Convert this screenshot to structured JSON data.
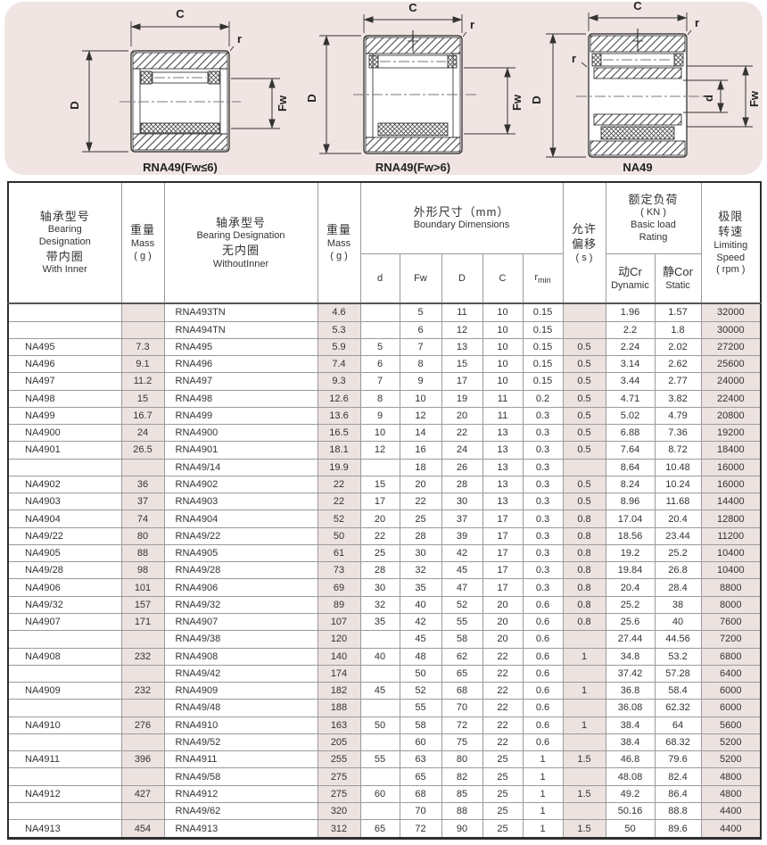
{
  "colors": {
    "panel_bg": "#f0e5e2",
    "shaded_column": "#ece2e0",
    "table_border": "#2e2e2e",
    "grid_line": "#9b9b9b",
    "text": "#333333"
  },
  "diagrams": [
    {
      "caption": "RNA49(Fw≤6)",
      "labels": {
        "C": "C",
        "D": "D",
        "Fw": "Fw",
        "r": "r"
      }
    },
    {
      "caption": "RNA49(Fw>6)",
      "labels": {
        "C": "C",
        "D": "D",
        "Fw": "Fw",
        "r": "r"
      }
    },
    {
      "caption": "NA49",
      "labels": {
        "C": "C",
        "D": "D",
        "d": "d",
        "Fw": "Fw",
        "r": "r",
        "r2": "r"
      }
    }
  ],
  "table": {
    "header": {
      "with_inner": [
        "轴承型号",
        "Bearing",
        "Designation",
        "带内圈",
        "With Inner"
      ],
      "mass1": [
        "重量",
        "Mass",
        "( g )"
      ],
      "without_inner": [
        "轴承型号",
        "Bearing Designation",
        "无内圈",
        "WithoutInner"
      ],
      "mass2": [
        "重量",
        "Mass",
        "( g )"
      ],
      "boundary": [
        "外形尺寸（mm）",
        "Boundary Dimensions"
      ],
      "offset": [
        "允许",
        "偏移",
        "( s )"
      ],
      "load": [
        "额定负荷",
        "( KN )",
        "Basic load",
        "Rating"
      ],
      "speed": [
        "极限",
        "转速",
        "Limiting",
        "Speed",
        "( rpm )"
      ],
      "dim_d": "d",
      "dim_fw": "Fw",
      "dim_D": "D",
      "dim_C": "C",
      "rmin_base": "r",
      "rmin_sub": "min",
      "cr": [
        "动Cr",
        "Dynamic"
      ],
      "cor": [
        "静Cor",
        "Static"
      ]
    },
    "rows": [
      [
        "",
        "",
        "RNA493TN",
        "4.6",
        "",
        "5",
        "11",
        "10",
        "0.15",
        "",
        "1.96",
        "1.57",
        "32000"
      ],
      [
        "",
        "",
        "RNA494TN",
        "5.3",
        "",
        "6",
        "12",
        "10",
        "0.15",
        "",
        "2.2",
        "1.8",
        "30000"
      ],
      [
        "NA495",
        "7.3",
        "RNA495",
        "5.9",
        "5",
        "7",
        "13",
        "10",
        "0.15",
        "0.5",
        "2.24",
        "2.02",
        "27200"
      ],
      [
        "NA496",
        "9.1",
        "RNA496",
        "7.4",
        "6",
        "8",
        "15",
        "10",
        "0.15",
        "0.5",
        "3.14",
        "2.62",
        "25600"
      ],
      [
        "NA497",
        "11.2",
        "RNA497",
        "9.3",
        "7",
        "9",
        "17",
        "10",
        "0.15",
        "0.5",
        "3.44",
        "2.77",
        "24000"
      ],
      [
        "NA498",
        "15",
        "RNA498",
        "12.6",
        "8",
        "10",
        "19",
        "11",
        "0.2",
        "0.5",
        "4.71",
        "3.82",
        "22400"
      ],
      [
        "NA499",
        "16.7",
        "RNA499",
        "13.6",
        "9",
        "12",
        "20",
        "11",
        "0.3",
        "0.5",
        "5.02",
        "4.79",
        "20800"
      ],
      [
        "NA4900",
        "24",
        "RNA4900",
        "16.5",
        "10",
        "14",
        "22",
        "13",
        "0.3",
        "0.5",
        "6.88",
        "7.36",
        "19200"
      ],
      [
        "NA4901",
        "26.5",
        "RNA4901",
        "18.1",
        "12",
        "16",
        "24",
        "13",
        "0.3",
        "0.5",
        "7.64",
        "8.72",
        "18400"
      ],
      [
        "",
        "",
        "RNA49/14",
        "19.9",
        "",
        "18",
        "26",
        "13",
        "0.3",
        "",
        "8.64",
        "10.48",
        "16000"
      ],
      [
        "NA4902",
        "36",
        "RNA4902",
        "22",
        "15",
        "20",
        "28",
        "13",
        "0.3",
        "0.5",
        "8.24",
        "10.24",
        "16000"
      ],
      [
        "NA4903",
        "37",
        "RNA4903",
        "22",
        "17",
        "22",
        "30",
        "13",
        "0.3",
        "0.5",
        "8.96",
        "11.68",
        "14400"
      ],
      [
        "NA4904",
        "74",
        "RNA4904",
        "52",
        "20",
        "25",
        "37",
        "17",
        "0.3",
        "0.8",
        "17.04",
        "20.4",
        "12800"
      ],
      [
        "NA49/22",
        "80",
        "RNA49/22",
        "50",
        "22",
        "28",
        "39",
        "17",
        "0.3",
        "0.8",
        "18.56",
        "23.44",
        "11200"
      ],
      [
        "NA4905",
        "88",
        "RNA4905",
        "61",
        "25",
        "30",
        "42",
        "17",
        "0.3",
        "0.8",
        "19.2",
        "25.2",
        "10400"
      ],
      [
        "NA49/28",
        "98",
        "RNA49/28",
        "73",
        "28",
        "32",
        "45",
        "17",
        "0.3",
        "0.8",
        "19.84",
        "26.8",
        "10400"
      ],
      [
        "NA4906",
        "101",
        "RNA4906",
        "69",
        "30",
        "35",
        "47",
        "17",
        "0.3",
        "0.8",
        "20.4",
        "28.4",
        "8800"
      ],
      [
        "NA49/32",
        "157",
        "RNA49/32",
        "89",
        "32",
        "40",
        "52",
        "20",
        "0.6",
        "0.8",
        "25.2",
        "38",
        "8000"
      ],
      [
        "NA4907",
        "171",
        "RNA4907",
        "107",
        "35",
        "42",
        "55",
        "20",
        "0.6",
        "0.8",
        "25.6",
        "40",
        "7600"
      ],
      [
        "",
        "",
        "RNA49/38",
        "120",
        "",
        "45",
        "58",
        "20",
        "0.6",
        "",
        "27.44",
        "44.56",
        "7200"
      ],
      [
        "NA4908",
        "232",
        "RNA4908",
        "140",
        "40",
        "48",
        "62",
        "22",
        "0.6",
        "1",
        "34.8",
        "53.2",
        "6800"
      ],
      [
        "",
        "",
        "RNA49/42",
        "174",
        "",
        "50",
        "65",
        "22",
        "0.6",
        "",
        "37.42",
        "57.28",
        "6400"
      ],
      [
        "NA4909",
        "232",
        "RNA4909",
        "182",
        "45",
        "52",
        "68",
        "22",
        "0.6",
        "1",
        "36.8",
        "58.4",
        "6000"
      ],
      [
        "",
        "",
        "RNA49/48",
        "188",
        "",
        "55",
        "70",
        "22",
        "0.6",
        "",
        "36.08",
        "62.32",
        "6000"
      ],
      [
        "NA4910",
        "276",
        "RNA4910",
        "163",
        "50",
        "58",
        "72",
        "22",
        "0.6",
        "1",
        "38.4",
        "64",
        "5600"
      ],
      [
        "",
        "",
        "RNA49/52",
        "205",
        "",
        "60",
        "75",
        "22",
        "0.6",
        "",
        "38.4",
        "68.32",
        "5200"
      ],
      [
        "NA4911",
        "396",
        "RNA4911",
        "255",
        "55",
        "63",
        "80",
        "25",
        "1",
        "1.5",
        "46.8",
        "79.6",
        "5200"
      ],
      [
        "",
        "",
        "RNA49/58",
        "275",
        "",
        "65",
        "82",
        "25",
        "1",
        "",
        "48.08",
        "82.4",
        "4800"
      ],
      [
        "NA4912",
        "427",
        "RNA4912",
        "275",
        "60",
        "68",
        "85",
        "25",
        "1",
        "1.5",
        "49.2",
        "86.4",
        "4800"
      ],
      [
        "",
        "",
        "RNA49/62",
        "320",
        "",
        "70",
        "88",
        "25",
        "1",
        "",
        "50.16",
        "88.8",
        "4400"
      ],
      [
        "NA4913",
        "454",
        "RNA4913",
        "312",
        "65",
        "72",
        "90",
        "25",
        "1",
        "1.5",
        "50",
        "89.6",
        "4400"
      ]
    ]
  }
}
